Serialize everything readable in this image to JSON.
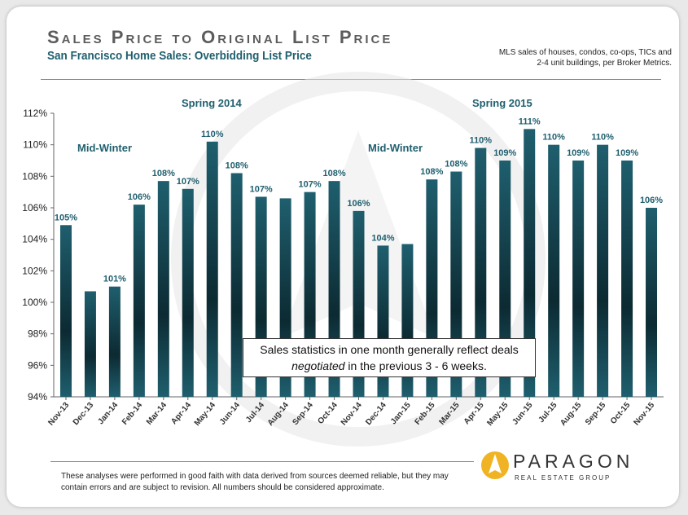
{
  "header": {
    "title": "Sales Price to Original List Price",
    "subtitle": "San Francisco Home Sales: Overbidding List Price",
    "note": "MLS sales of houses, condos, co-ops, TICs and 2-4 unit buildings, per Broker Metrics."
  },
  "footer": {
    "disclaimer": "These analyses were performed in good faith with data derived from sources deemed reliable, but they may contain errors and are subject to revision. All numbers should be considered approximate.",
    "logo_name": "PARAGON",
    "logo_tagline": "REAL ESTATE GROUP"
  },
  "colors": {
    "bar_top": "#1f5f6e",
    "bar_mid": "#0c2a32",
    "label": "#1f5f6e",
    "logo_accent": "#f0b323"
  },
  "chart_data": {
    "type": "bar",
    "title": "Sales Price to Original List Price",
    "subtitle": "San Francisco Home Sales: Overbidding List Price",
    "xlabel": "",
    "ylabel": "",
    "ylim": [
      94,
      112
    ],
    "y_ticks": [
      "94%",
      "96%",
      "98%",
      "100%",
      "102%",
      "104%",
      "106%",
      "108%",
      "110%",
      "112%"
    ],
    "categories": [
      "Nov-13",
      "Dec-13",
      "Jan-14",
      "Feb-14",
      "Mar-14",
      "Apr-14",
      "May-14",
      "Jun-14",
      "Jul-14",
      "Aug-14",
      "Sep-14",
      "Oct-14",
      "Nov-14",
      "Dec-14",
      "Jan-15",
      "Feb-15",
      "Mar-15",
      "Apr-15",
      "May-15",
      "Jun-15",
      "Jul-15",
      "Aug-15",
      "Sep-15",
      "Oct-15",
      "Nov-15"
    ],
    "values": [
      104.9,
      100.7,
      101.0,
      106.2,
      107.7,
      107.2,
      110.2,
      108.2,
      106.7,
      106.6,
      107.0,
      107.7,
      105.8,
      103.6,
      103.7,
      107.8,
      108.3,
      109.8,
      109.0,
      111.0,
      110.0,
      109.0,
      110.0,
      109.0,
      106.0
    ],
    "data_labels": [
      "105%",
      "",
      "101%",
      "106%",
      "108%",
      "107%",
      "110%",
      "108%",
      "107%",
      "",
      "107%",
      "108%",
      "106%",
      "104%",
      "",
      "108%",
      "108%",
      "110%",
      "109%",
      "111%",
      "110%",
      "109%",
      "110%",
      "109%",
      "106%"
    ],
    "annotations": [
      "Mid-Winter",
      "Spring 2014",
      "Mid-Winter",
      "Spring 2015"
    ],
    "callout_line1": "Sales statistics in one month generally reflect deals",
    "callout_word": "negotiated",
    "callout_line2": " in the previous 3 - 6 weeks.",
    "grid": false,
    "legend": "none"
  }
}
